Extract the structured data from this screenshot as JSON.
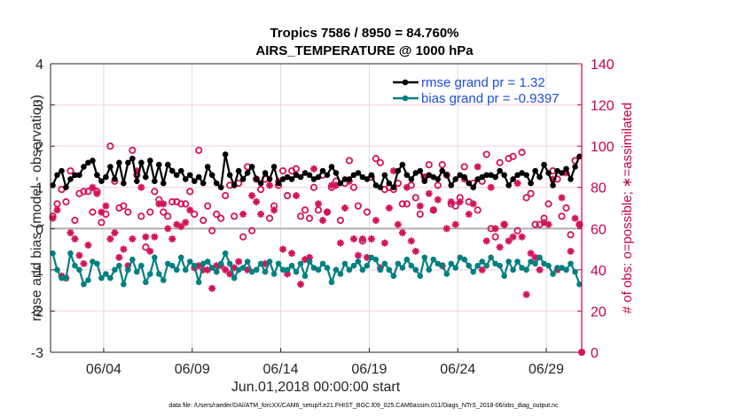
{
  "chart_data": {
    "type": "line",
    "title": "Tropics 7586 / 8950 = 84.760%",
    "subtitle": "AIRS_TEMPERATURE @ 1000 hPa",
    "xlabel": "Jun.01,2018 00:00:00 start",
    "ylabel": "rmse and bias (model - observation)",
    "ylabel_right": "# of obs: o=possible; ∗=assimilated",
    "footnote": "data file: /Users/raeder/DAI/ATM_forcXX/CAM6_setup/f.e21.FHIST_BGC.f09_025.CAM6assim.011/Diags_NTrS_2018-06/obs_diag_output.nc",
    "xlim_days": [
      0,
      30
    ],
    "ylim": [
      -3,
      4
    ],
    "ylim_right": [
      0,
      140
    ],
    "grid": true,
    "legend_position": "top-right",
    "x_ticks": [
      {
        "day": 3,
        "label": "06/04"
      },
      {
        "day": 8,
        "label": "06/09"
      },
      {
        "day": 13,
        "label": "06/14"
      },
      {
        "day": 18,
        "label": "06/19"
      },
      {
        "day": 23,
        "label": "06/24"
      },
      {
        "day": 28,
        "label": "06/29"
      }
    ],
    "y_ticks": [
      "-3",
      "-2",
      "-1",
      "0",
      "1",
      "2",
      "3",
      "4"
    ],
    "y_ticks_right": [
      "0",
      "20",
      "40",
      "60",
      "80",
      "100",
      "120",
      "140"
    ],
    "legend": [
      {
        "name": "rmse grand pr = 1.32",
        "color": "#000000"
      },
      {
        "name": "bias grand pr = -0.9397",
        "color": "#008080"
      }
    ],
    "colors": {
      "rmse": "#000000",
      "bias": "#008080",
      "obs": "#d4145a",
      "right_axis": "#c8004f",
      "legend_text": "#1f4fd6"
    },
    "x_step_hours": 6,
    "series": [
      {
        "name": "rmse",
        "values": [
          1.05,
          1.3,
          1.4,
          1.0,
          1.2,
          1.3,
          1.3,
          1.5,
          1.6,
          1.65,
          1.3,
          1.15,
          1.25,
          1.5,
          1.2,
          1.6,
          1.1,
          1.6,
          1.7,
          1.15,
          1.6,
          1.25,
          1.65,
          1.15,
          1.55,
          1.1,
          1.55,
          1.4,
          1.3,
          1.4,
          1.2,
          1.3,
          1.15,
          1.25,
          1.1,
          1.5,
          1.3,
          1.1,
          1.0,
          1.8,
          1.3,
          1.05,
          1.4,
          1.2,
          1.35,
          1.5,
          1.2,
          1.1,
          1.35,
          1.2,
          1.5,
          1.1,
          1.2,
          1.25,
          1.2,
          1.3,
          1.25,
          1.35,
          1.3,
          1.2,
          1.25,
          1.4,
          1.3,
          1.5,
          1.35,
          1.1,
          1.2,
          1.2,
          1.3,
          1.35,
          1.25,
          1.2,
          1.3,
          1.05,
          1.0,
          1.3,
          1.1,
          1.0,
          1.4,
          1.55,
          1.3,
          1.2,
          1.35,
          1.4,
          1.15,
          1.3,
          1.25,
          1.2,
          1.4,
          1.3,
          1.05,
          1.2,
          1.3,
          1.25,
          1.1,
          1.0,
          1.2,
          1.25,
          1.3,
          1.3,
          1.25,
          1.4,
          1.3,
          1.05,
          1.2,
          1.3,
          1.35,
          1.3,
          1.1,
          1.4,
          1.25,
          1.55,
          1.35,
          1.05,
          1.4,
          1.35,
          1.45,
          1.2,
          1.5,
          1.75
        ]
      },
      {
        "name": "bias",
        "values": [
          -0.6,
          -1.0,
          -1.2,
          -1.2,
          -0.6,
          -0.9,
          -1.0,
          -1.35,
          -1.25,
          -0.8,
          -0.85,
          -1.2,
          -1.1,
          -1.2,
          -1.0,
          -0.9,
          -1.35,
          -1.0,
          -0.75,
          -1.05,
          -0.9,
          -1.3,
          -1.1,
          -0.7,
          -1.1,
          -1.25,
          -0.85,
          -0.9,
          -1.0,
          -0.7,
          -1.0,
          -0.8,
          -0.9,
          -1.3,
          -0.85,
          -0.8,
          -0.95,
          -1.05,
          -0.85,
          -0.6,
          -0.85,
          -1.2,
          -1.0,
          -0.95,
          -0.8,
          -1.05,
          -1.0,
          -0.85,
          -1.05,
          -0.8,
          -1.1,
          -0.85,
          -1.0,
          -1.0,
          -0.9,
          -1.05,
          -0.85,
          -1.15,
          -0.8,
          -0.95,
          -1.0,
          -0.85,
          -0.95,
          -1.3,
          -1.0,
          -1.1,
          -0.85,
          -1.0,
          -0.9,
          -0.8,
          -1.0,
          -0.9,
          -0.7,
          -0.75,
          -1.0,
          -0.85,
          -1.0,
          -1.15,
          -0.85,
          -0.95,
          -0.75,
          -0.9,
          -1.0,
          -1.15,
          -0.7,
          -1.0,
          -0.75,
          -0.85,
          -0.9,
          -1.1,
          -0.85,
          -0.95,
          -0.7,
          -0.75,
          -0.9,
          -1.05,
          -0.9,
          -0.8,
          -0.9,
          -0.7,
          -0.85,
          -0.9,
          -1.15,
          -0.8,
          -1.0,
          -0.8,
          -0.95,
          -1.0,
          -0.8,
          -0.85,
          -0.7,
          -0.85,
          -0.9,
          -1.1,
          -0.95,
          -0.95,
          -1.0,
          -0.85,
          -1.05,
          -1.35
        ]
      },
      {
        "name": "obs_possible",
        "axis": "right",
        "values": [
          66,
          72,
          79,
          73,
          88,
          64,
          77,
          78,
          78,
          68,
          78,
          63,
          67,
          100,
          83,
          70,
          71,
          68,
          98,
          86,
          66,
          51,
          68,
          78,
          74,
          68,
          66,
          73,
          73,
          72,
          72,
          78,
          67,
          98,
          64,
          71,
          59,
          67,
          65,
          76,
          81,
          66,
          82,
          56,
          90,
          59,
          84,
          79,
          84,
          65,
          71,
          81,
          88,
          76,
          88,
          89,
          66,
          69,
          65,
          80,
          69,
          86,
          68,
          80,
          83,
          64,
          82,
          93,
          80,
          71,
          54,
          68,
          85,
          94,
          92,
          79,
          80,
          79,
          82,
          72,
          72,
          81,
          75,
          67,
          85,
          91,
          69,
          81,
          91,
          86,
          72,
          71,
          75,
          90,
          73,
          82,
          69,
          83,
          96,
          60,
          56,
          92,
          62,
          94,
          95,
          59,
          97,
          75,
          77,
          62,
          62,
          65,
          72,
          88,
          84,
          66,
          70,
          57,
          93,
          62
        ]
      },
      {
        "name": "obs_assimilated",
        "axis": "right",
        "values": [
          65,
          69,
          37,
          36,
          58,
          55,
          47,
          43,
          52,
          80,
          77,
          68,
          71,
          55,
          58,
          46,
          50,
          42,
          55,
          88,
          80,
          56,
          49,
          56,
          72,
          72,
          60,
          55,
          62,
          61,
          63,
          69,
          41,
          42,
          40,
          40,
          31,
          42,
          42,
          40,
          38,
          41,
          44,
          67,
          40,
          76,
          73,
          67,
          43,
          81,
          69,
          83,
          50,
          38,
          48,
          76,
          33,
          45,
          46,
          89,
          72,
          64,
          68,
          81,
          81,
          53,
          70,
          83,
          55,
          47,
          55,
          46,
          55,
          64,
          41,
          53,
          70,
          88,
          62,
          58,
          80,
          54,
          49,
          71,
          85,
          77,
          69,
          74,
          42,
          60,
          73,
          62,
          73,
          84,
          67,
          72,
          90,
          40,
          54,
          80,
          60,
          51,
          62,
          54,
          56,
          82,
          56,
          28,
          48,
          46,
          40,
          63,
          62,
          84,
          40,
          75,
          87,
          49,
          65,
          62
        ]
      }
    ]
  }
}
